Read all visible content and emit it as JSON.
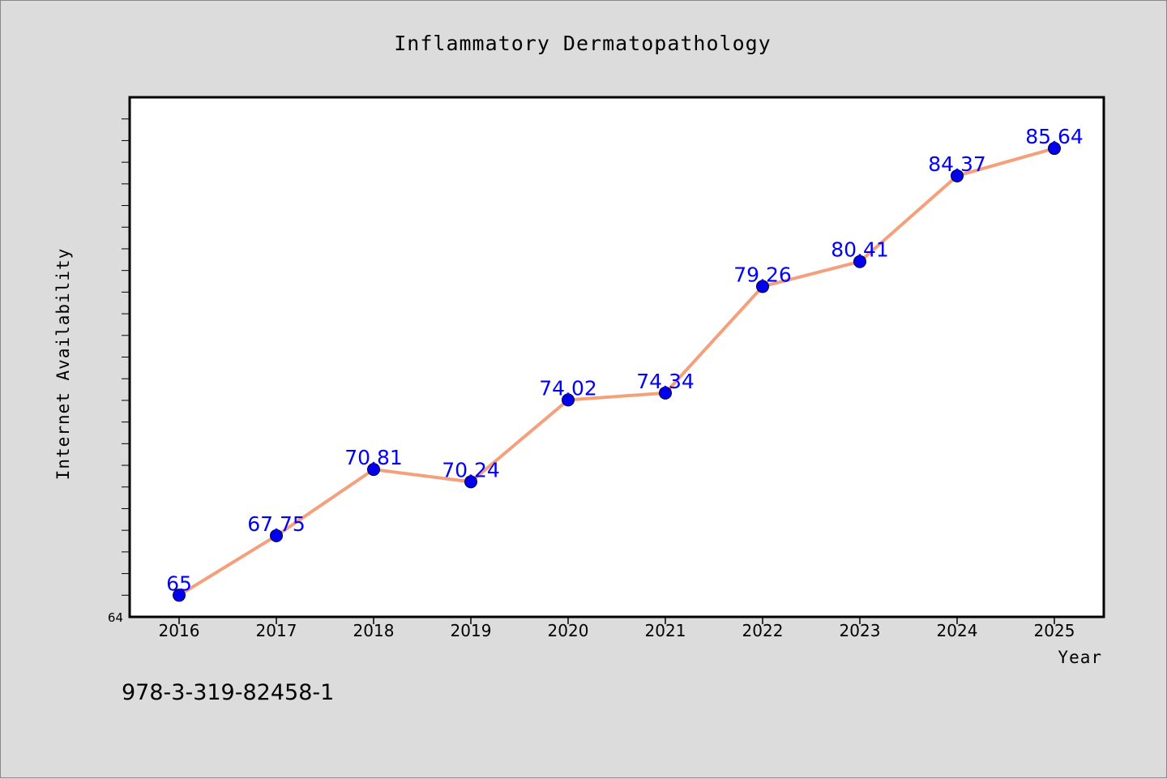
{
  "chart_data": {
    "type": "line",
    "title": "Inflammatory Dermatopathology",
    "xlabel": "Year",
    "ylabel": "Internet Availability",
    "categories": [
      "2016",
      "2017",
      "2018",
      "2019",
      "2020",
      "2021",
      "2022",
      "2023",
      "2024",
      "2025"
    ],
    "series": [
      {
        "values": [
          65,
          67.75,
          70.81,
          70.24,
          74.02,
          74.34,
          79.26,
          80.41,
          84.37,
          85.64
        ],
        "line_color": "#f4a07c",
        "marker_color": "#0000ee",
        "label_color": "#0000ff"
      }
    ],
    "ylim": [
      64,
      88
    ],
    "y_tick_labels": [
      "64"
    ],
    "y_minor_tick_step": 1,
    "grid": false,
    "legend": "none",
    "data_labels": [
      "65",
      "67.75",
      "70.81",
      "70.24",
      "74.02",
      "74.34",
      "79.26",
      "80.41",
      "84.37",
      "85.64"
    ]
  },
  "footer": {
    "isbn": "978-3-319-82458-1"
  }
}
